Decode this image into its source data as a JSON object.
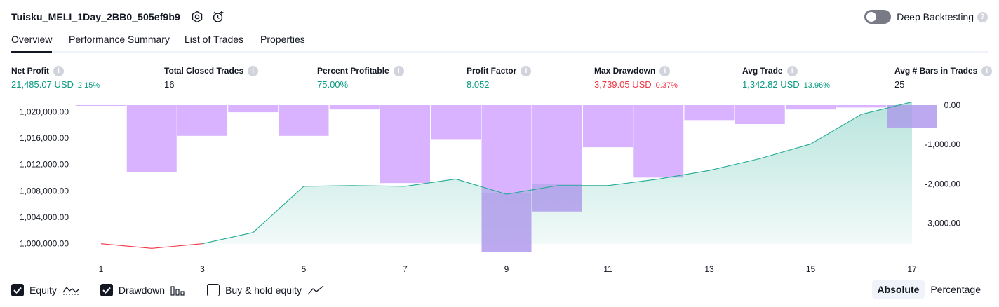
{
  "header": {
    "title": "Tuisku_MELI_1Day_2BB0_505ef9b9",
    "deep_backtesting_label": "Deep Backtesting",
    "deep_backtesting_enabled": false
  },
  "tabs": [
    {
      "label": "Overview",
      "active": true
    },
    {
      "label": "Performance Summary",
      "active": false
    },
    {
      "label": "List of Trades",
      "active": false
    },
    {
      "label": "Properties",
      "active": false
    }
  ],
  "metrics": [
    {
      "label": "Net Profit",
      "value": "21,485.07 USD",
      "pct": "2.15%",
      "color": "green"
    },
    {
      "label": "Total Closed Trades",
      "value": "16",
      "pct": "",
      "color": "dark"
    },
    {
      "label": "Percent Profitable",
      "value": "75.00%",
      "pct": "",
      "color": "green"
    },
    {
      "label": "Profit Factor",
      "value": "8.052",
      "pct": "",
      "color": "green"
    },
    {
      "label": "Max Drawdown",
      "value": "3,739.05 USD",
      "pct": "0.37%",
      "color": "red"
    },
    {
      "label": "Avg Trade",
      "value": "1,342.82 USD",
      "pct": "13.96%",
      "color": "green"
    },
    {
      "label": "Avg # Bars in Trades",
      "value": "25",
      "pct": "",
      "color": "dark"
    }
  ],
  "chart_data": {
    "type": "line",
    "x": [
      1,
      2,
      3,
      4,
      5,
      6,
      7,
      8,
      9,
      10,
      11,
      12,
      13,
      14,
      15,
      16,
      17
    ],
    "x_tick_labels": [
      "1",
      "3",
      "5",
      "7",
      "9",
      "11",
      "13",
      "15",
      "17"
    ],
    "left_axis": {
      "ylim": [
        998800,
        1021000
      ],
      "ticks": [
        "1,000,000.00",
        "1,004,000.00",
        "1,008,000.00",
        "1,012,000.00",
        "1,016,000.00",
        "1,020,000.00"
      ],
      "tick_values": [
        1000000,
        1004000,
        1008000,
        1012000,
        1016000,
        1020000
      ]
    },
    "right_axis": {
      "ylim": [
        -3739.05,
        0
      ],
      "ticks": [
        "0.00",
        "-1,000.00",
        "-2,000.00",
        "-3,000.00"
      ],
      "tick_values": [
        0,
        -1000,
        -2000,
        -3000
      ]
    },
    "series": [
      {
        "name": "Equity",
        "values": [
          1000000,
          999300,
          1000000,
          1001700,
          1008700,
          1008800,
          1008700,
          1009800,
          1007500,
          1008800,
          1008800,
          1009800,
          1011100,
          1012900,
          1015100,
          1019600,
          1021485
        ]
      },
      {
        "name": "Drawdown",
        "values": [
          -10,
          -1700,
          -780,
          -180,
          -780,
          -110,
          -1980,
          -880,
          -3739.05,
          -2700,
          -1070,
          -1840,
          -380,
          -480,
          -110,
          -60,
          -570
        ]
      }
    ],
    "colors": {
      "equity_up": "#22ab94",
      "equity_down": "#f23645",
      "equity_fill": "#22ab94",
      "drawdown": "#d9b3ff",
      "drawdown_overlap": "#b3a5ea"
    },
    "grid": false
  },
  "legend": {
    "items": [
      {
        "label": "Equity",
        "checked": true,
        "icon": "equity-line-icon"
      },
      {
        "label": "Drawdown",
        "checked": true,
        "icon": "drawdown-bars-icon"
      },
      {
        "label": "Buy & hold equity",
        "checked": false,
        "icon": "buy-hold-line-icon"
      }
    ]
  },
  "mode": {
    "absolute_label": "Absolute",
    "percentage_label": "Percentage",
    "selected": "Absolute"
  }
}
